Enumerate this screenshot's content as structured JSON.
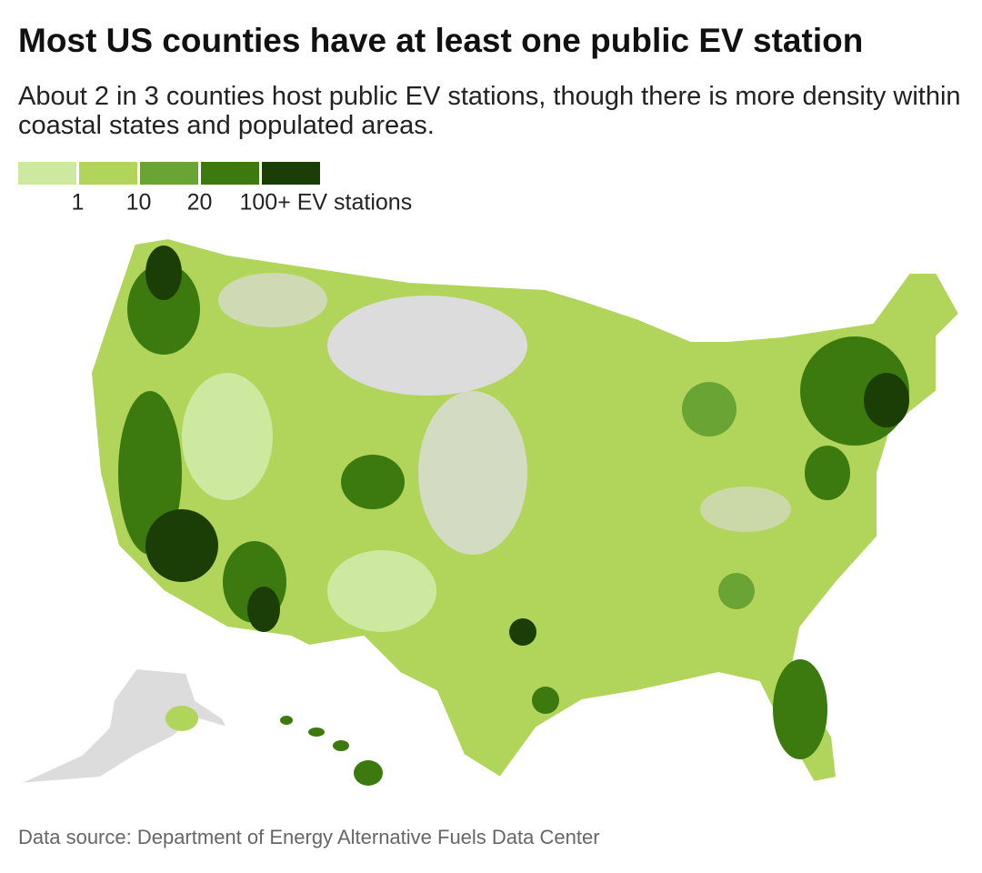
{
  "header": {
    "title": "Most US counties have at least one public EV station",
    "subtitle": "About 2 in 3 counties host public EV stations, though there is more density within coastal states and populated areas."
  },
  "legend": {
    "colors": [
      "#cde9a0",
      "#b1d55a",
      "#6aa434",
      "#3c7a10",
      "#1b3d06"
    ],
    "labels": [
      "1",
      "10",
      "20",
      "100+ EV stations"
    ]
  },
  "footer": {
    "source": "Data source: Department of Energy Alternative Fuels Data Center"
  }
}
